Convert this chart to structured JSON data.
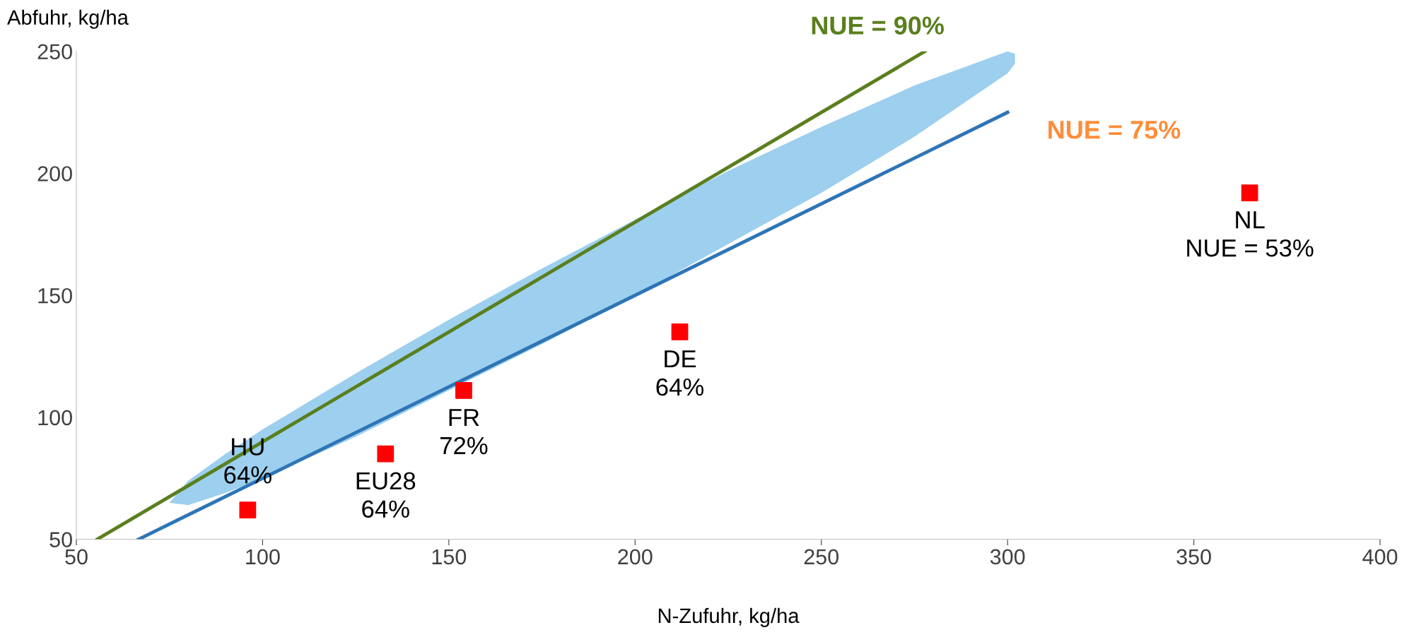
{
  "chart_data": {
    "type": "scatter",
    "ylabel": "Abfuhr, kg/ha",
    "xlabel": "N-Zufuhr, kg/ha",
    "xlim": [
      50,
      400
    ],
    "xticks": [
      50,
      100,
      150,
      200,
      250,
      300,
      350,
      400
    ],
    "ylim": [
      50,
      250
    ],
    "yticks": [
      50,
      100,
      150,
      200,
      250
    ],
    "grid": false,
    "legend": false,
    "marker": "square",
    "series": [
      {
        "type": "area",
        "marker": "none",
        "color": "#9dcfee",
        "x": [
          75,
          80,
          90,
          100,
          125,
          150,
          175,
          200,
          225,
          250,
          275,
          300,
          302
        ],
        "values": [
          null,
          null,
          null,
          null,
          null,
          null,
          null,
          null,
          null,
          null,
          null,
          null,
          null
        ],
        "lower": [
          65,
          64,
          69,
          75,
          92,
          111,
          130,
          150,
          171,
          192,
          215,
          241,
          245
        ],
        "upper": [
          65,
          74,
          85,
          95,
          118,
          140,
          161,
          181,
          201,
          219,
          236,
          250,
          249
        ]
      },
      {
        "type": "line",
        "marker": "none",
        "color": "#5a7f1e",
        "x": [
          55.6,
          277.8
        ],
        "values": [
          50,
          250
        ]
      },
      {
        "type": "line",
        "marker": "none",
        "color": "#2e75b6",
        "x": [
          66.7,
          300
        ],
        "values": [
          50,
          225
        ]
      },
      {
        "color": "#ff0000",
        "x": [
          96,
          133,
          154,
          212,
          365
        ],
        "values": [
          62,
          85,
          111,
          135,
          192
        ]
      }
    ],
    "annotations": [
      {
        "text": "NUE = 90%",
        "x": 277.8,
        "y": 250
      },
      {
        "text": "NUE = 75%",
        "x": 300,
        "y": 225
      },
      {
        "text": "HU\n64%",
        "x": 96,
        "y": 62
      },
      {
        "text": "EU28\n64%",
        "x": 133,
        "y": 85
      },
      {
        "text": "FR\n72%",
        "x": 154,
        "y": 111
      },
      {
        "text": "DE\n64%",
        "x": 212,
        "y": 135
      },
      {
        "text": "NL\nNUE = 53%",
        "x": 365,
        "y": 192
      }
    ]
  }
}
